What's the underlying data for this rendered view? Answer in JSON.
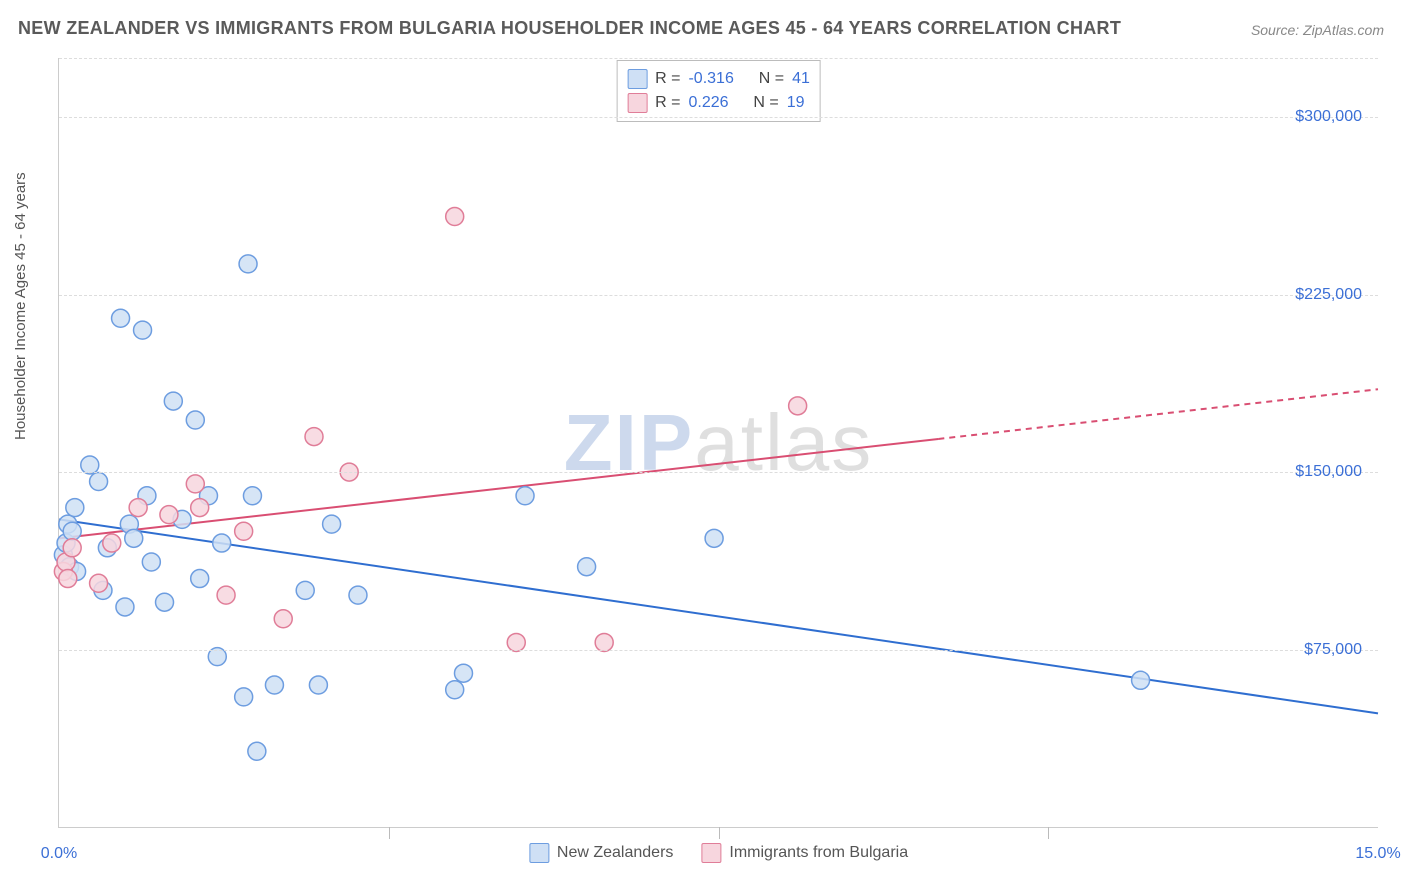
{
  "title": "NEW ZEALANDER VS IMMIGRANTS FROM BULGARIA HOUSEHOLDER INCOME AGES 45 - 64 YEARS CORRELATION CHART",
  "source": "Source: ZipAtlas.com",
  "ylabel": "Householder Income Ages 45 - 64 years",
  "watermark": {
    "part1": "ZIP",
    "part2": "atlas"
  },
  "chart": {
    "type": "scatter",
    "background_color": "#ffffff",
    "grid_color": "#dddddd",
    "axis_color": "#cccccc",
    "tick_label_color": "#3b6fd6",
    "label_color": "#555555",
    "label_fontsize": 15,
    "tick_fontsize": 16,
    "xlim": [
      0.0,
      15.0
    ],
    "ylim": [
      0,
      325000
    ],
    "x_ticks": [
      0.0,
      15.0
    ],
    "x_tick_labels": [
      "0.0%",
      "15.0%"
    ],
    "x_minor_tick_count": 3,
    "y_ticks": [
      75000,
      150000,
      225000,
      300000
    ],
    "y_tick_labels": [
      "$75,000",
      "$150,000",
      "$225,000",
      "$300,000"
    ],
    "marker_radius": 9,
    "marker_stroke_width": 1.5,
    "line_width": 2,
    "series": [
      {
        "name": "New Zealanders",
        "fill": "#cfe0f5",
        "stroke": "#6d9de0",
        "line_color": "#2f6ed0",
        "r": -0.316,
        "n": 41,
        "trend": {
          "x1": 0.0,
          "y1": 130000,
          "x2": 15.0,
          "y2": 48000,
          "solid_until_x": 15.0
        },
        "points": [
          {
            "x": 0.05,
            "y": 115000
          },
          {
            "x": 0.08,
            "y": 120000
          },
          {
            "x": 0.1,
            "y": 128000
          },
          {
            "x": 0.12,
            "y": 110000
          },
          {
            "x": 0.15,
            "y": 125000
          },
          {
            "x": 0.18,
            "y": 135000
          },
          {
            "x": 0.2,
            "y": 108000
          },
          {
            "x": 0.35,
            "y": 153000
          },
          {
            "x": 0.45,
            "y": 146000
          },
          {
            "x": 0.5,
            "y": 100000
          },
          {
            "x": 0.55,
            "y": 118000
          },
          {
            "x": 0.7,
            "y": 215000
          },
          {
            "x": 0.75,
            "y": 93000
          },
          {
            "x": 0.8,
            "y": 128000
          },
          {
            "x": 0.85,
            "y": 122000
          },
          {
            "x": 0.95,
            "y": 210000
          },
          {
            "x": 1.0,
            "y": 140000
          },
          {
            "x": 1.05,
            "y": 112000
          },
          {
            "x": 1.2,
            "y": 95000
          },
          {
            "x": 1.3,
            "y": 180000
          },
          {
            "x": 1.4,
            "y": 130000
          },
          {
            "x": 1.55,
            "y": 172000
          },
          {
            "x": 1.6,
            "y": 105000
          },
          {
            "x": 1.7,
            "y": 140000
          },
          {
            "x": 1.8,
            "y": 72000
          },
          {
            "x": 1.85,
            "y": 120000
          },
          {
            "x": 2.1,
            "y": 55000
          },
          {
            "x": 2.15,
            "y": 238000
          },
          {
            "x": 2.2,
            "y": 140000
          },
          {
            "x": 2.25,
            "y": 32000
          },
          {
            "x": 2.45,
            "y": 60000
          },
          {
            "x": 2.8,
            "y": 100000
          },
          {
            "x": 2.95,
            "y": 60000
          },
          {
            "x": 3.1,
            "y": 128000
          },
          {
            "x": 3.4,
            "y": 98000
          },
          {
            "x": 4.5,
            "y": 58000
          },
          {
            "x": 4.6,
            "y": 65000
          },
          {
            "x": 5.3,
            "y": 140000
          },
          {
            "x": 6.0,
            "y": 110000
          },
          {
            "x": 7.45,
            "y": 122000
          },
          {
            "x": 12.3,
            "y": 62000
          }
        ]
      },
      {
        "name": "Immigrants from Bulgaria",
        "fill": "#f7d6de",
        "stroke": "#e07d98",
        "line_color": "#d94e72",
        "r": 0.226,
        "n": 19,
        "trend": {
          "x1": 0.0,
          "y1": 122000,
          "x2": 15.0,
          "y2": 185000,
          "solid_until_x": 10.0
        },
        "points": [
          {
            "x": 0.05,
            "y": 108000
          },
          {
            "x": 0.08,
            "y": 112000
          },
          {
            "x": 0.1,
            "y": 105000
          },
          {
            "x": 0.15,
            "y": 118000
          },
          {
            "x": 0.45,
            "y": 103000
          },
          {
            "x": 0.6,
            "y": 120000
          },
          {
            "x": 0.9,
            "y": 135000
          },
          {
            "x": 1.25,
            "y": 132000
          },
          {
            "x": 1.55,
            "y": 145000
          },
          {
            "x": 1.6,
            "y": 135000
          },
          {
            "x": 1.9,
            "y": 98000
          },
          {
            "x": 2.1,
            "y": 125000
          },
          {
            "x": 2.55,
            "y": 88000
          },
          {
            "x": 2.9,
            "y": 165000
          },
          {
            "x": 3.3,
            "y": 150000
          },
          {
            "x": 4.5,
            "y": 258000
          },
          {
            "x": 5.2,
            "y": 78000
          },
          {
            "x": 6.2,
            "y": 78000
          },
          {
            "x": 8.4,
            "y": 178000
          }
        ]
      }
    ],
    "stats_box": {
      "r_label": "R =",
      "n_label": "N ="
    },
    "legend_labels": [
      "New Zealanders",
      "Immigrants from Bulgaria"
    ]
  }
}
